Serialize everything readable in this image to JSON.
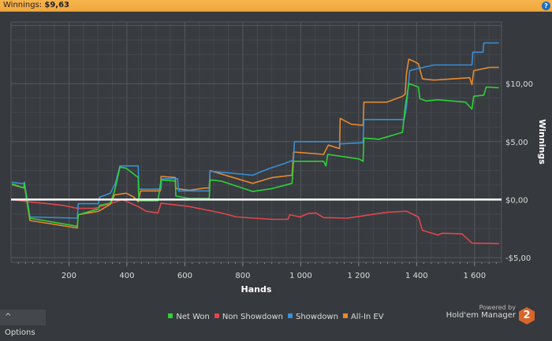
{
  "header": {
    "label": "Winnings:",
    "value": "$9,63",
    "help_icon": "help-icon"
  },
  "options_label": "Options",
  "powered": {
    "line1": "Powered by",
    "line2": "Hold'em Manager",
    "logo_text": "2"
  },
  "chart_data": {
    "type": "line",
    "xlabel": "Hands",
    "ylabel": "Winnings",
    "xlim": [
      0,
      1693
    ],
    "ylim": [
      -5.4,
      15.3
    ],
    "x_ticks": [
      200,
      400,
      600,
      800,
      1000,
      1200,
      1400,
      1600
    ],
    "x_tick_labels": [
      "200",
      "400",
      "600",
      "800",
      "1 000",
      "1 200",
      "1 400",
      "1 600"
    ],
    "y_ticks": [
      10,
      5,
      0,
      -5
    ],
    "y_tick_labels": [
      "$10,00",
      "$5,00",
      "$0,00",
      "-$5,00"
    ],
    "grid": true,
    "legend_placement": "bottom",
    "series": [
      {
        "name": "Net Won",
        "color": "#2fd13a",
        "points": [
          [
            3,
            1.36
          ],
          [
            44,
            1.0
          ],
          [
            46,
            1.4
          ],
          [
            65,
            -1.6
          ],
          [
            229,
            -2.3
          ],
          [
            232,
            -1.3
          ],
          [
            302,
            -0.8
          ],
          [
            305,
            -0.5
          ],
          [
            343,
            -0.3
          ],
          [
            357,
            0.7
          ],
          [
            376,
            2.8
          ],
          [
            398,
            2.7
          ],
          [
            439,
            1.9
          ],
          [
            441,
            -0.1
          ],
          [
            507,
            -0.1
          ],
          [
            518,
            1.7
          ],
          [
            567,
            1.6
          ],
          [
            569,
            0.3
          ],
          [
            616,
            0.1
          ],
          [
            684,
            0.1
          ],
          [
            687,
            1.7
          ],
          [
            725,
            1.6
          ],
          [
            834,
            0.7
          ],
          [
            902,
            0.95
          ],
          [
            970,
            1.4
          ],
          [
            975,
            3.3
          ],
          [
            1079,
            3.3
          ],
          [
            1087,
            2.9
          ],
          [
            1093,
            3.9
          ],
          [
            1202,
            3.5
          ],
          [
            1215,
            3.3
          ],
          [
            1218,
            5.3
          ],
          [
            1270,
            5.2
          ],
          [
            1351,
            5.8
          ],
          [
            1360,
            7.9
          ],
          [
            1373,
            10.0
          ],
          [
            1406,
            9.7
          ],
          [
            1411,
            8.7
          ],
          [
            1433,
            8.5
          ],
          [
            1474,
            8.6
          ],
          [
            1569,
            8.4
          ],
          [
            1591,
            7.8
          ],
          [
            1597,
            8.9
          ],
          [
            1632,
            9.0
          ],
          [
            1640,
            9.7
          ],
          [
            1684,
            9.63
          ]
        ]
      },
      {
        "name": "Non Showdown",
        "color": "#e0474c",
        "points": [
          [
            3,
            0
          ],
          [
            65,
            -0.2
          ],
          [
            125,
            -0.35
          ],
          [
            180,
            -0.5
          ],
          [
            229,
            -0.75
          ],
          [
            289,
            -0.75
          ],
          [
            343,
            -0.35
          ],
          [
            384,
            0
          ],
          [
            439,
            -0.6
          ],
          [
            466,
            -1.0
          ],
          [
            507,
            -1.15
          ],
          [
            518,
            -0.3
          ],
          [
            616,
            -0.6
          ],
          [
            725,
            -1.15
          ],
          [
            779,
            -1.5
          ],
          [
            902,
            -1.7
          ],
          [
            956,
            -1.7
          ],
          [
            962,
            -1.3
          ],
          [
            997,
            -1.5
          ],
          [
            1025,
            -1.2
          ],
          [
            1052,
            -1.15
          ],
          [
            1079,
            -1.55
          ],
          [
            1161,
            -1.6
          ],
          [
            1215,
            -1.4
          ],
          [
            1297,
            -1.1
          ],
          [
            1365,
            -1.0
          ],
          [
            1406,
            -1.5
          ],
          [
            1420,
            -2.65
          ],
          [
            1474,
            -3.05
          ],
          [
            1488,
            -2.9
          ],
          [
            1556,
            -2.95
          ],
          [
            1591,
            -3.75
          ],
          [
            1684,
            -3.8
          ]
        ]
      },
      {
        "name": "Showdown",
        "color": "#3a8fd6",
        "points": [
          [
            3,
            1.5
          ],
          [
            44,
            1.36
          ],
          [
            46,
            1.5
          ],
          [
            65,
            -1.5
          ],
          [
            229,
            -1.6
          ],
          [
            232,
            -0.35
          ],
          [
            302,
            -0.35
          ],
          [
            305,
            0.2
          ],
          [
            343,
            0.55
          ],
          [
            360,
            1.4
          ],
          [
            376,
            2.9
          ],
          [
            439,
            2.9
          ],
          [
            441,
            0.9
          ],
          [
            518,
            0.9
          ],
          [
            520,
            1.8
          ],
          [
            575,
            1.8
          ],
          [
            578,
            0.75
          ],
          [
            684,
            0.75
          ],
          [
            687,
            2.45
          ],
          [
            834,
            2.1
          ],
          [
            888,
            2.65
          ],
          [
            943,
            3.1
          ],
          [
            975,
            3.4
          ],
          [
            978,
            5.0
          ],
          [
            1134,
            5.0
          ],
          [
            1136,
            4.8
          ],
          [
            1215,
            4.9
          ],
          [
            1218,
            6.9
          ],
          [
            1357,
            6.9
          ],
          [
            1365,
            8.0
          ],
          [
            1376,
            11.1
          ],
          [
            1406,
            11.3
          ],
          [
            1460,
            11.6
          ],
          [
            1591,
            11.6
          ],
          [
            1594,
            12.7
          ],
          [
            1629,
            12.7
          ],
          [
            1632,
            13.5
          ],
          [
            1684,
            13.5
          ]
        ]
      },
      {
        "name": "All-In EV",
        "color": "#e88a2e",
        "points": [
          [
            3,
            1.3
          ],
          [
            44,
            1.0
          ],
          [
            46,
            1.3
          ],
          [
            65,
            -1.8
          ],
          [
            229,
            -2.45
          ],
          [
            232,
            -1.3
          ],
          [
            302,
            -1.0
          ],
          [
            343,
            -0.4
          ],
          [
            357,
            0.4
          ],
          [
            398,
            0.55
          ],
          [
            425,
            0.2
          ],
          [
            439,
            -0.2
          ],
          [
            447,
            0.75
          ],
          [
            515,
            0.75
          ],
          [
            518,
            2.0
          ],
          [
            567,
            1.9
          ],
          [
            569,
            0.95
          ],
          [
            616,
            0.8
          ],
          [
            670,
            1.0
          ],
          [
            684,
            1.0
          ],
          [
            687,
            2.5
          ],
          [
            834,
            1.4
          ],
          [
            902,
            1.9
          ],
          [
            970,
            2.1
          ],
          [
            975,
            4.1
          ],
          [
            1079,
            3.9
          ],
          [
            1095,
            4.7
          ],
          [
            1134,
            4.4
          ],
          [
            1136,
            7.0
          ],
          [
            1174,
            6.5
          ],
          [
            1215,
            6.4
          ],
          [
            1218,
            8.4
          ],
          [
            1297,
            8.4
          ],
          [
            1351,
            8.9
          ],
          [
            1360,
            9.1
          ],
          [
            1365,
            10.9
          ],
          [
            1373,
            12.1
          ],
          [
            1392,
            11.9
          ],
          [
            1406,
            11.7
          ],
          [
            1420,
            10.4
          ],
          [
            1460,
            10.3
          ],
          [
            1583,
            10.5
          ],
          [
            1591,
            9.9
          ],
          [
            1597,
            11.1
          ],
          [
            1651,
            11.4
          ],
          [
            1684,
            11.4
          ]
        ]
      }
    ]
  }
}
